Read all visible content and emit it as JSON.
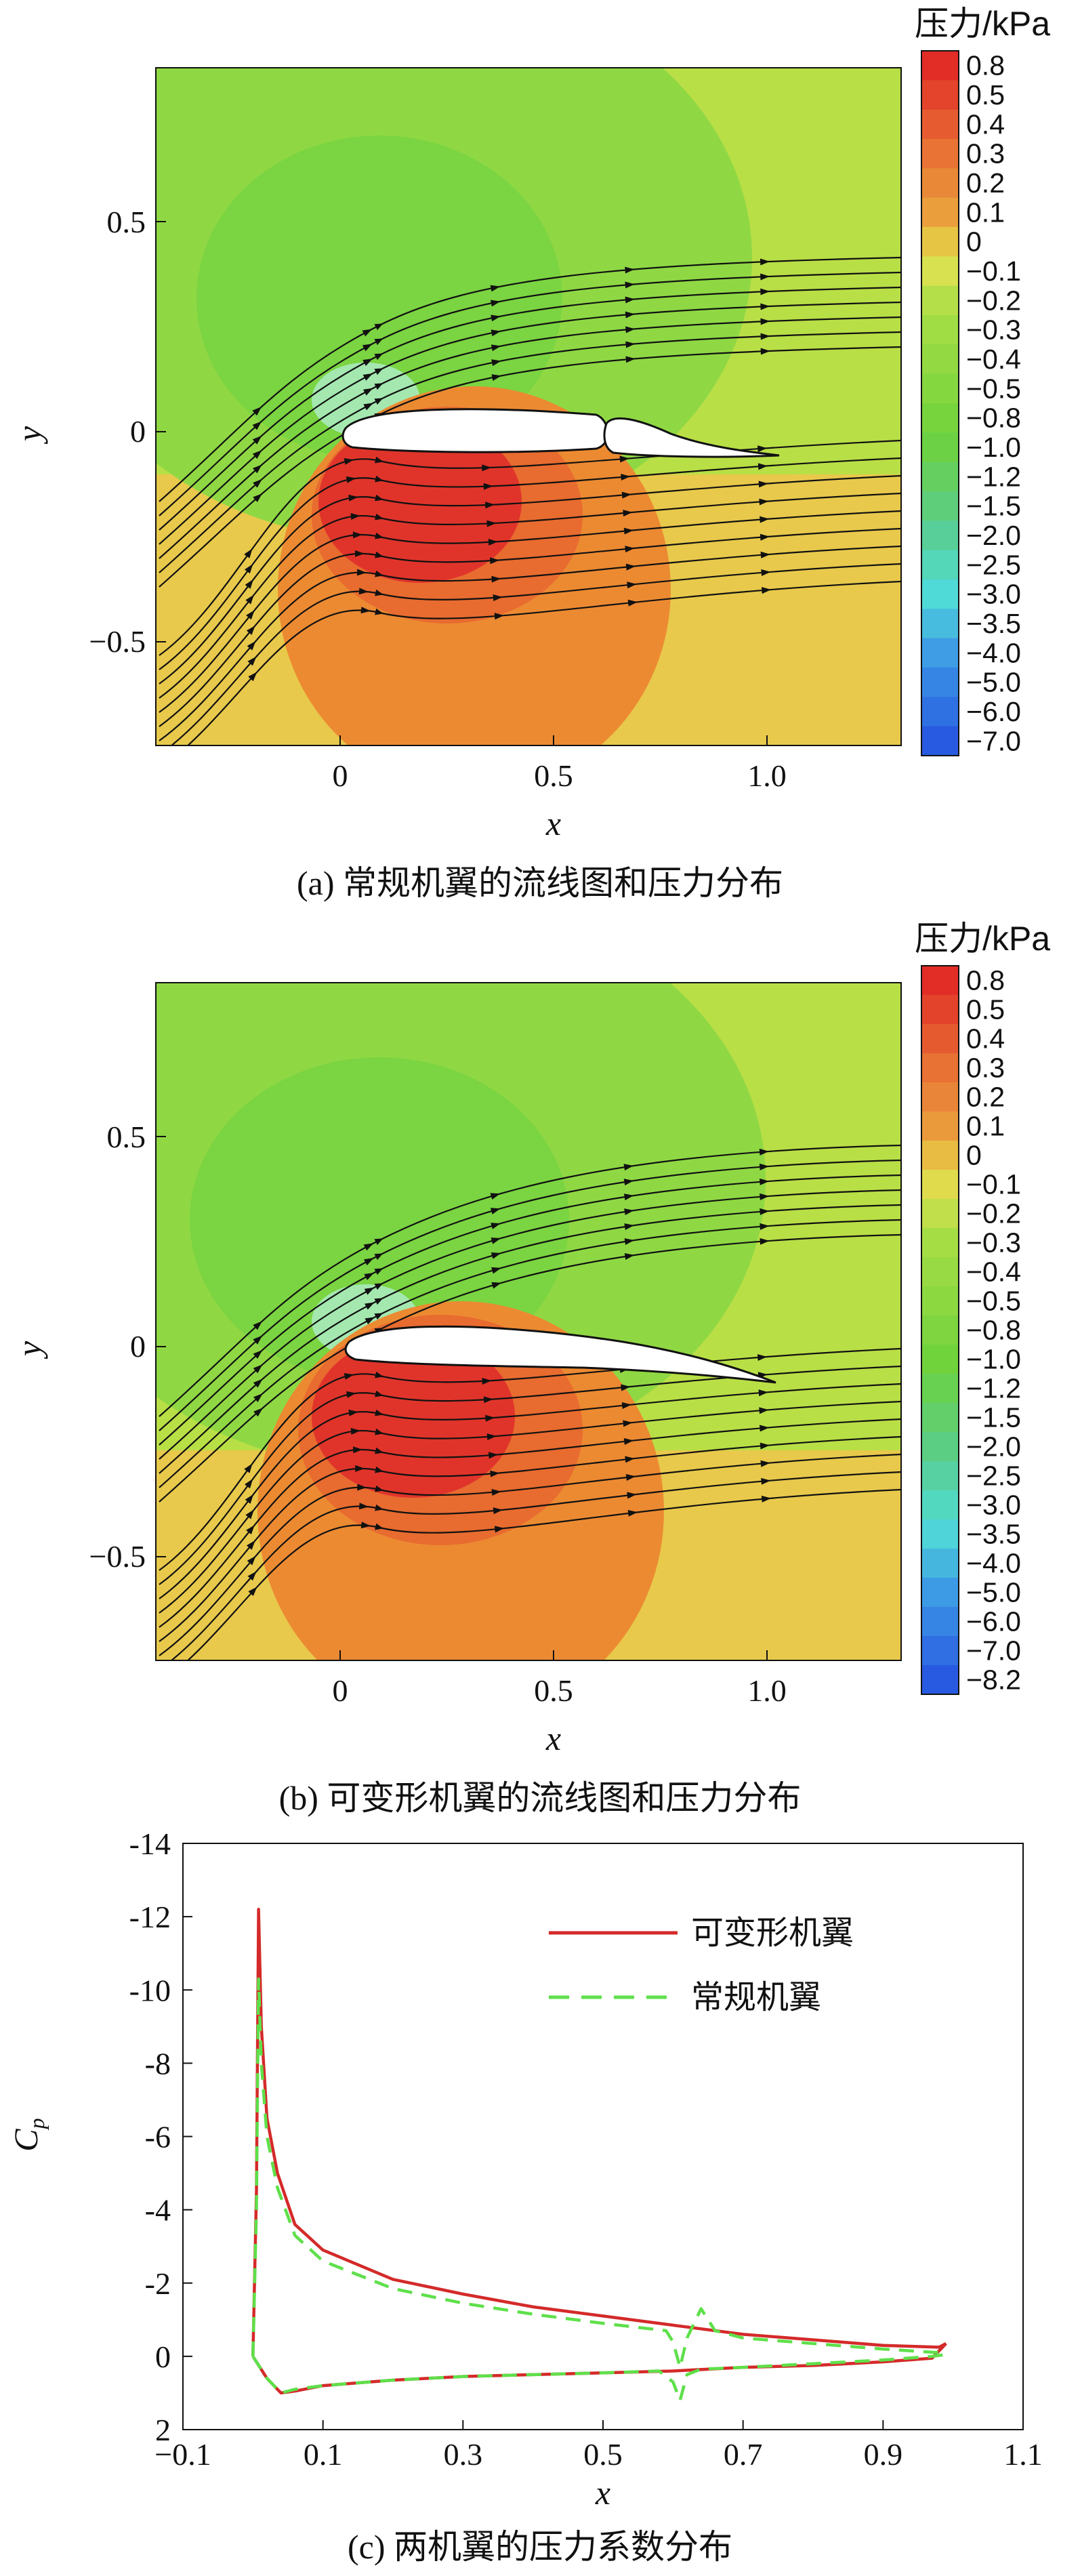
{
  "colors": {
    "red": "#e0342b",
    "orange": "#ec8a32",
    "yellow": "#e8c94b",
    "lightgreen": "#b9df46",
    "green": "#7bd441",
    "cyan": "#52e0d2",
    "blue": "#2a6fe6",
    "line_red": "#d42a2a",
    "line_green": "#5ee04a"
  },
  "chart_data": [
    {
      "panel": "a",
      "type": "heatmap",
      "caption": "(a) 常规机翼的流线图和压力分布",
      "xlabel": "x",
      "ylabel": "y",
      "x_ticks": [
        "0",
        "0.5",
        "1.0"
      ],
      "y_ticks": [
        "0.5",
        "0",
        "−0.5"
      ],
      "xlim": [
        -0.45,
        1.3
      ],
      "ylim": [
        -0.73,
        0.85
      ],
      "colorbar_title": "压力/kPa",
      "colorbar_levels": [
        "0.8",
        "0.5",
        "0.4",
        "0.3",
        "0.2",
        "0.1",
        "0",
        "−0.1",
        "−0.2",
        "−0.3",
        "−0.4",
        "−0.5",
        "−0.8",
        "−1.0",
        "−1.2",
        "−1.5",
        "−2.0",
        "−2.5",
        "−3.0",
        "−3.5",
        "−4.0",
        "−5.0",
        "−6.0",
        "−7.0"
      ],
      "streamlines": true,
      "airfoil": "conventional wing with flap"
    },
    {
      "panel": "b",
      "type": "heatmap",
      "caption": "(b) 可变形机翼的流线图和压力分布",
      "xlabel": "x",
      "ylabel": "y",
      "x_ticks": [
        "0",
        "0.5",
        "1.0"
      ],
      "y_ticks": [
        "0.5",
        "0",
        "−0.5"
      ],
      "xlim": [
        -0.45,
        1.3
      ],
      "ylim": [
        -0.73,
        0.85
      ],
      "colorbar_title": "压力/kPa",
      "colorbar_levels": [
        "0.8",
        "0.5",
        "0.4",
        "0.3",
        "0.2",
        "0.1",
        "0",
        "−0.1",
        "−0.2",
        "−0.3",
        "−0.4",
        "−0.5",
        "−0.8",
        "−1.0",
        "−1.2",
        "−1.5",
        "−2.0",
        "−2.5",
        "−3.0",
        "−3.5",
        "−4.0",
        "−5.0",
        "−6.0",
        "−7.0",
        "−8.2"
      ],
      "streamlines": true,
      "airfoil": "morphing wing"
    },
    {
      "panel": "c",
      "type": "line",
      "caption": "(c) 两机翼的压力系数分布",
      "xlabel": "x",
      "ylabel": "C",
      "ylabel_sub": "p",
      "xlim": [
        -0.1,
        1.1
      ],
      "ylim": [
        2,
        -14
      ],
      "x_ticks": [
        "−0.1",
        "0.1",
        "0.3",
        "0.5",
        "0.7",
        "0.9",
        "1.1"
      ],
      "y_ticks": [
        "-14",
        "-12",
        "-10",
        "-8",
        "-6",
        "-4",
        "-2",
        "0",
        "2"
      ],
      "legend_position": "top-right",
      "series": [
        {
          "name": "可变形机翼",
          "style": "solid",
          "upper": [
            [
              0.0,
              0
            ],
            [
              0.005,
              -4.5
            ],
            [
              0.008,
              -12.2
            ],
            [
              0.012,
              -9
            ],
            [
              0.02,
              -6.5
            ],
            [
              0.035,
              -5
            ],
            [
              0.06,
              -3.6
            ],
            [
              0.1,
              -2.9
            ],
            [
              0.2,
              -2.1
            ],
            [
              0.3,
              -1.7
            ],
            [
              0.4,
              -1.35
            ],
            [
              0.5,
              -1.1
            ],
            [
              0.6,
              -0.85
            ],
            [
              0.7,
              -0.6
            ],
            [
              0.8,
              -0.45
            ],
            [
              0.9,
              -0.3
            ],
            [
              0.98,
              -0.25
            ],
            [
              0.99,
              -0.35
            ]
          ],
          "lower": [
            [
              0.0,
              0
            ],
            [
              0.02,
              0.6
            ],
            [
              0.04,
              1.0
            ],
            [
              0.06,
              0.95
            ],
            [
              0.1,
              0.8
            ],
            [
              0.2,
              0.65
            ],
            [
              0.3,
              0.55
            ],
            [
              0.4,
              0.5
            ],
            [
              0.5,
              0.45
            ],
            [
              0.6,
              0.4
            ],
            [
              0.7,
              0.3
            ],
            [
              0.8,
              0.25
            ],
            [
              0.9,
              0.15
            ],
            [
              0.97,
              0.05
            ],
            [
              0.99,
              -0.35
            ]
          ]
        },
        {
          "name": "常规机翼",
          "style": "dashed",
          "upper": [
            [
              0.0,
              0
            ],
            [
              0.005,
              -4
            ],
            [
              0.008,
              -10.3
            ],
            [
              0.012,
              -8
            ],
            [
              0.02,
              -6
            ],
            [
              0.035,
              -4.6
            ],
            [
              0.06,
              -3.3
            ],
            [
              0.1,
              -2.6
            ],
            [
              0.2,
              -1.85
            ],
            [
              0.3,
              -1.45
            ],
            [
              0.4,
              -1.15
            ],
            [
              0.5,
              -0.9
            ],
            [
              0.59,
              -0.7
            ],
            [
              0.6,
              -0.4
            ],
            [
              0.61,
              0.3
            ],
            [
              0.62,
              -0.5
            ],
            [
              0.64,
              -1.3
            ],
            [
              0.66,
              -0.7
            ],
            [
              0.7,
              -0.5
            ],
            [
              0.8,
              -0.35
            ],
            [
              0.9,
              -0.2
            ],
            [
              0.98,
              -0.1
            ],
            [
              0.99,
              -0.05
            ]
          ],
          "lower": [
            [
              0.0,
              0
            ],
            [
              0.02,
              0.6
            ],
            [
              0.04,
              1.0
            ],
            [
              0.06,
              0.9
            ],
            [
              0.1,
              0.8
            ],
            [
              0.2,
              0.65
            ],
            [
              0.3,
              0.55
            ],
            [
              0.4,
              0.5
            ],
            [
              0.5,
              0.45
            ],
            [
              0.58,
              0.4
            ],
            [
              0.6,
              0.7
            ],
            [
              0.61,
              1.2
            ],
            [
              0.62,
              0.5
            ],
            [
              0.64,
              0.35
            ],
            [
              0.7,
              0.3
            ],
            [
              0.8,
              0.2
            ],
            [
              0.9,
              0.1
            ],
            [
              0.97,
              0.0
            ],
            [
              0.99,
              -0.05
            ]
          ]
        }
      ]
    }
  ]
}
